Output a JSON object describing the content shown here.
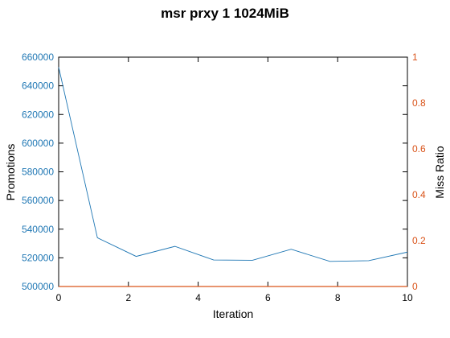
{
  "chart_data": {
    "type": "line",
    "title": "msr prxy 1 1024MiB",
    "xlabel": "Iteration",
    "ylabel": "Promotions",
    "y2label": "Miss Ratio",
    "xlim": [
      0,
      10
    ],
    "ylim": [
      500000,
      660000
    ],
    "y2lim": [
      0,
      1
    ],
    "x_ticks": [
      "0",
      "2",
      "4",
      "6",
      "8",
      "10"
    ],
    "y_ticks": [
      "500000",
      "520000",
      "540000",
      "560000",
      "580000",
      "600000",
      "620000",
      "640000",
      "660000"
    ],
    "y2_ticks": [
      "0",
      "0.2",
      "0.4",
      "0.6",
      "0.8",
      "1"
    ],
    "grid": false,
    "series": [
      {
        "axis": "left",
        "color": "#1f77b4",
        "x": [
          0,
          1.111,
          2.222,
          3.333,
          4.444,
          5.556,
          6.667,
          7.778,
          8.889,
          10
        ],
        "values": [
          653000,
          534000,
          521000,
          528000,
          518500,
          518300,
          526000,
          517500,
          518000,
          524000
        ]
      },
      {
        "axis": "right",
        "color": "#d95319",
        "x": [
          0,
          1.111,
          2.222,
          3.333,
          4.444,
          5.556,
          6.667,
          7.778,
          8.889,
          10
        ],
        "values": [
          0,
          0,
          0,
          0,
          0,
          0,
          0,
          0,
          0,
          0
        ]
      }
    ]
  }
}
